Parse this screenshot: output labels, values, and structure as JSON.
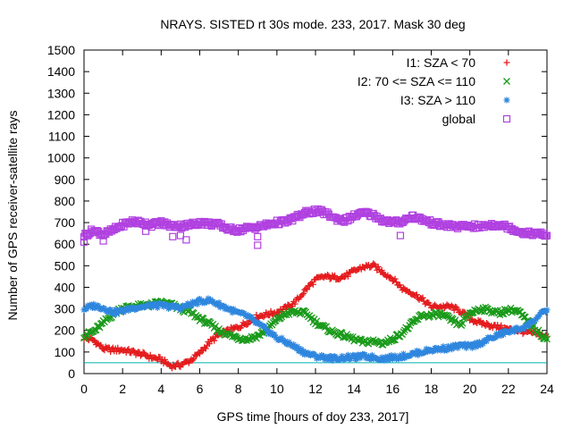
{
  "chart_data": {
    "type": "scatter",
    "title": "NRAYS. SISTED rt 30s mode. 233, 2017. Mask 30 deg",
    "xlabel": "GPS time [hours of doy 233, 2017]",
    "ylabel": "Number of GPS receiver-satellite rays",
    "xlim": [
      0,
      24
    ],
    "ylim": [
      0,
      1500
    ],
    "xticks": [
      0,
      2,
      4,
      6,
      8,
      10,
      12,
      14,
      16,
      18,
      20,
      22,
      24
    ],
    "yticks": [
      0,
      100,
      200,
      300,
      400,
      500,
      600,
      700,
      800,
      900,
      1000,
      1100,
      1200,
      1300,
      1400,
      1500
    ],
    "grid": false,
    "legend_position": "top-right",
    "reference_line": {
      "y": 50,
      "color": "#00b0b0"
    },
    "series": [
      {
        "name": "I1: SZA < 70",
        "marker": "+",
        "color": "#e41a1c",
        "x": [
          0,
          0.5,
          1,
          1.5,
          2,
          2.5,
          3,
          3.5,
          4,
          4.5,
          5,
          5.5,
          6,
          6.5,
          7,
          7.5,
          8,
          8.5,
          9,
          9.5,
          10,
          10.5,
          11,
          11.5,
          12,
          12.5,
          13,
          13.5,
          14,
          14.5,
          15,
          15.5,
          16,
          16.5,
          17,
          17.5,
          18,
          18.5,
          19,
          19.5,
          20,
          20.5,
          21,
          21.5,
          22,
          22.5,
          23,
          23.5,
          24
        ],
        "values": [
          165,
          155,
          115,
          110,
          110,
          100,
          90,
          75,
          65,
          35,
          40,
          60,
          95,
          145,
          180,
          200,
          215,
          240,
          265,
          275,
          285,
          305,
          335,
          390,
          435,
          450,
          445,
          450,
          475,
          495,
          500,
          470,
          440,
          395,
          375,
          345,
          310,
          310,
          310,
          290,
          255,
          235,
          225,
          215,
          205,
          200,
          190,
          185,
          170
        ]
      },
      {
        "name": "I2: 70 <= SZA <= 110",
        "marker": "x",
        "color": "#1a9a1a",
        "x": [
          0,
          0.5,
          1,
          1.5,
          2,
          2.5,
          3,
          3.5,
          4,
          4.5,
          5,
          5.5,
          6,
          6.5,
          7,
          7.5,
          8,
          8.5,
          9,
          9.5,
          10,
          10.5,
          11,
          11.5,
          12,
          12.5,
          13,
          13.5,
          14,
          14.5,
          15,
          15.5,
          16,
          16.5,
          17,
          17.5,
          18,
          18.5,
          19,
          19.5,
          20,
          20.5,
          21,
          21.5,
          22,
          22.5,
          23,
          23.5,
          24
        ],
        "values": [
          175,
          195,
          235,
          275,
          305,
          310,
          315,
          320,
          330,
          320,
          300,
          285,
          255,
          230,
          200,
          180,
          165,
          160,
          175,
          205,
          250,
          280,
          285,
          280,
          240,
          210,
          190,
          175,
          160,
          145,
          150,
          140,
          160,
          190,
          230,
          270,
          270,
          275,
          250,
          225,
          280,
          300,
          295,
          280,
          295,
          290,
          240,
          195,
          160
        ]
      },
      {
        "name": "I3: SZA > 110",
        "marker": "*",
        "color": "#2e86de",
        "x": [
          0,
          0.5,
          1,
          1.5,
          2,
          2.5,
          3,
          3.5,
          4,
          4.5,
          5,
          5.5,
          6,
          6.5,
          7,
          7.5,
          8,
          8.5,
          9,
          9.5,
          10,
          10.5,
          11,
          11.5,
          12,
          12.5,
          13,
          13.5,
          14,
          14.5,
          15,
          15.5,
          16,
          16.5,
          17,
          17.5,
          18,
          18.5,
          19,
          19.5,
          20,
          20.5,
          21,
          21.5,
          22,
          22.5,
          23,
          23.5,
          24
        ],
        "values": [
          300,
          315,
          305,
          285,
          290,
          305,
          310,
          315,
          315,
          310,
          305,
          320,
          335,
          340,
          320,
          300,
          280,
          265,
          230,
          200,
          165,
          145,
          120,
          95,
          80,
          75,
          70,
          75,
          75,
          80,
          75,
          70,
          75,
          80,
          90,
          100,
          110,
          115,
          120,
          130,
          125,
          140,
          160,
          180,
          195,
          205,
          225,
          260,
          295
        ]
      },
      {
        "name": "global",
        "marker": "square",
        "color": "#b040e0",
        "x": [
          0,
          0.5,
          1,
          1.5,
          2,
          2.5,
          3,
          3.5,
          4,
          4.5,
          5,
          5.5,
          6,
          6.5,
          7,
          7.5,
          8,
          8.5,
          9,
          9.5,
          10,
          10.5,
          11,
          11.5,
          12,
          12.5,
          13,
          13.5,
          14,
          14.5,
          15,
          15.5,
          16,
          16.5,
          17,
          17.5,
          18,
          18.5,
          19,
          19.5,
          20,
          20.5,
          21,
          21.5,
          22,
          22.5,
          23,
          23.5,
          24
        ],
        "values": [
          640,
          665,
          645,
          665,
          690,
          705,
          700,
          690,
          700,
          685,
          685,
          690,
          700,
          695,
          690,
          670,
          665,
          675,
          680,
          690,
          700,
          705,
          725,
          745,
          755,
          745,
          720,
          710,
          730,
          745,
          735,
          710,
          700,
          705,
          730,
          715,
          700,
          690,
          685,
          680,
          685,
          680,
          690,
          690,
          680,
          660,
          650,
          650,
          640
        ],
        "outliers_x": [
          0,
          1,
          3.2,
          4.6,
          5,
          5.3,
          9,
          9,
          16.4
        ],
        "outliers_values": [
          610,
          615,
          660,
          635,
          640,
          620,
          595,
          635,
          640
        ]
      }
    ]
  }
}
